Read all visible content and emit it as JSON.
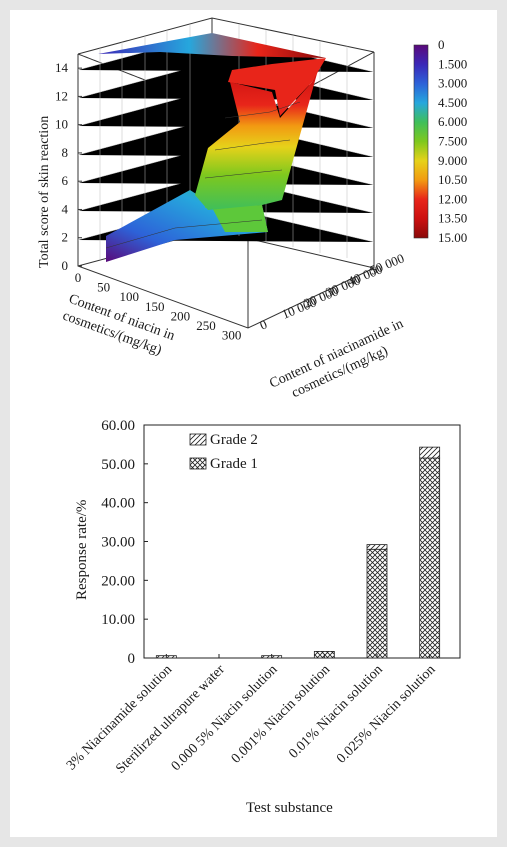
{
  "chart_data": [
    {
      "type": "surface3d",
      "zlabel": "Total score of skin reaction",
      "xlabel": "Content of niacin in cosmetics/(mg/kg)",
      "ylabel": "Content of niacinamide in cosmetics/(mg/kg)",
      "zticks": [
        "0",
        "2",
        "4",
        "6",
        "8",
        "10",
        "12",
        "14"
      ],
      "xticks": [
        "0",
        "50",
        "100",
        "150",
        "200",
        "250",
        "300"
      ],
      "yticks": [
        "0",
        "10 000",
        "20 000",
        "30 000",
        "40 000",
        "50 000"
      ],
      "zlim": [
        0,
        15
      ],
      "colorbar": {
        "labels": [
          "0",
          "1.500",
          "3.000",
          "4.500",
          "6.000",
          "7.500",
          "9.000",
          "10.50",
          "12.00",
          "13.50",
          "15.00"
        ],
        "colors": [
          "#5a0a7a",
          "#3b28b8",
          "#2d62d8",
          "#26a7dd",
          "#3fbf5a",
          "#7ec81e",
          "#e6d21a",
          "#f29a12",
          "#e8251a",
          "#cc1010",
          "#8a0a0a"
        ]
      }
    },
    {
      "type": "bar",
      "stacked": true,
      "categories": [
        "3% Niacinamide solution",
        "Sterilirzed ultrapure water",
        "0.000 5% Niacin solution",
        "0.001% Niacin solution",
        "0.01% Niacin solution",
        "0.025% Niacin solution"
      ],
      "series": [
        {
          "name": "Grade 1",
          "values": [
            0.0,
            0.0,
            0.0,
            1.7,
            28.0,
            51.5
          ]
        },
        {
          "name": "Grade 2",
          "values": [
            0.6,
            0.0,
            0.6,
            0.0,
            1.2,
            2.8
          ]
        }
      ],
      "legend_order": [
        "Grade 2",
        "Grade 1"
      ],
      "xlabel": "Test substance",
      "ylabel": "Response rate/%",
      "yticks": [
        "0",
        "10.00",
        "20.00",
        "30.00",
        "40.00",
        "50.00",
        "60.00"
      ],
      "ylim": [
        0,
        60
      ],
      "legend": "top-left"
    }
  ]
}
